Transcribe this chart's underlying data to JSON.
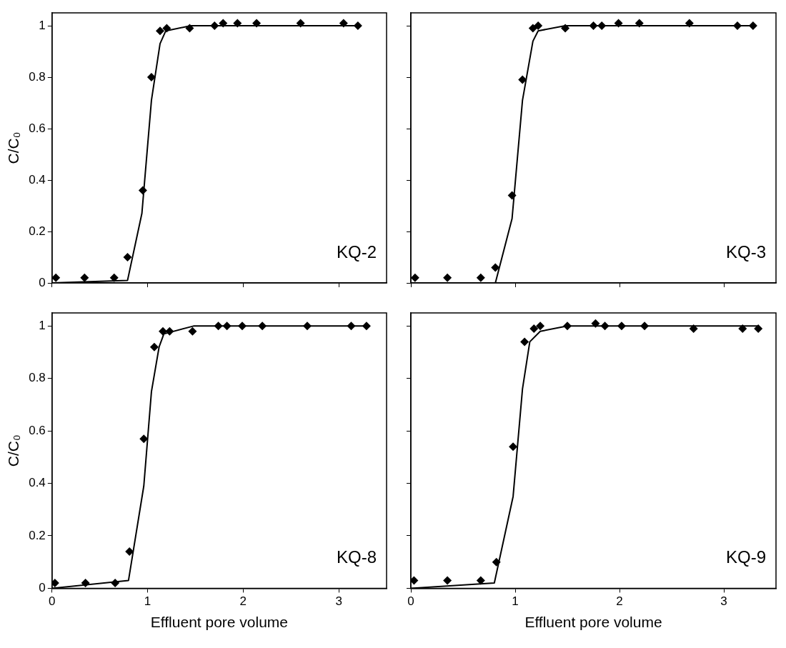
{
  "chart_data": [
    {
      "type": "scatter",
      "ylabel": "C/C₀",
      "xlim": [
        0,
        3.5
      ],
      "xticks": [
        0,
        1,
        2,
        3
      ],
      "ylim": [
        0,
        1.05
      ],
      "yticks": [
        0,
        0.2,
        0.4,
        0.6,
        0.8,
        1
      ],
      "tick_labels": "y",
      "grid": false,
      "legend": false,
      "marker": "diamond",
      "annotations": [
        "KQ-2"
      ],
      "series": [
        {
          "type": "scatter",
          "color": "#000000",
          "x": [
            0.04,
            0.34,
            0.65,
            0.79,
            0.95,
            1.04,
            1.13,
            1.2,
            1.44,
            1.7,
            1.79,
            1.94,
            2.14,
            2.6,
            3.05,
            3.2
          ],
          "values": [
            0.02,
            0.02,
            0.02,
            0.1,
            0.36,
            0.8,
            0.98,
            0.99,
            0.99,
            1.0,
            1.01,
            1.01,
            1.01,
            1.01,
            1.01,
            1.0
          ]
        },
        {
          "type": "line",
          "color": "#000000",
          "marker": "none",
          "line_style": "solid",
          "x": [
            0,
            0.79,
            0.94,
            1.04,
            1.13,
            1.19,
            1.45,
            3.2
          ],
          "values": [
            0,
            0.01,
            0.27,
            0.71,
            0.93,
            0.98,
            1.0,
            1.0
          ]
        }
      ]
    },
    {
      "type": "scatter",
      "xlim": [
        0,
        3.5
      ],
      "xticks": [
        0,
        1,
        2,
        3
      ],
      "ylim": [
        0,
        1.05
      ],
      "yticks": [
        0,
        0.2,
        0.4,
        0.6,
        0.8,
        1
      ],
      "tick_labels": false,
      "grid": false,
      "legend": false,
      "marker": "diamond",
      "annotations": [
        "KQ-3"
      ],
      "series": [
        {
          "type": "scatter",
          "color": "#000000",
          "x": [
            0.04,
            0.35,
            0.67,
            0.81,
            0.97,
            1.07,
            1.17,
            1.22,
            1.48,
            1.75,
            1.83,
            1.99,
            2.19,
            2.67,
            3.13,
            3.28
          ],
          "values": [
            0.02,
            0.02,
            0.02,
            0.06,
            0.34,
            0.79,
            0.99,
            1.0,
            0.99,
            1.0,
            1.0,
            1.01,
            1.01,
            1.01,
            1.0,
            1.0
          ]
        },
        {
          "type": "line",
          "color": "#000000",
          "marker": "none",
          "line_style": "solid",
          "x": [
            0,
            0.81,
            0.97,
            1.07,
            1.17,
            1.22,
            1.48,
            3.28
          ],
          "values": [
            0,
            0.0,
            0.25,
            0.71,
            0.94,
            0.98,
            1.0,
            1.0
          ]
        }
      ]
    },
    {
      "type": "scatter",
      "xlabel": "Effluent pore volume",
      "ylabel": "C/C₀",
      "xlim": [
        0,
        3.5
      ],
      "xticks": [
        0,
        1,
        2,
        3
      ],
      "ylim": [
        0,
        1.05
      ],
      "yticks": [
        0,
        0.2,
        0.4,
        0.6,
        0.8,
        1
      ],
      "grid": false,
      "legend": false,
      "marker": "diamond",
      "annotations": [
        "KQ-8"
      ],
      "series": [
        {
          "type": "scatter",
          "color": "#000000",
          "x": [
            0.03,
            0.35,
            0.66,
            0.81,
            0.96,
            1.07,
            1.16,
            1.23,
            1.47,
            1.74,
            1.83,
            1.99,
            2.2,
            2.67,
            3.13,
            3.29
          ],
          "values": [
            0.02,
            0.02,
            0.02,
            0.14,
            0.57,
            0.92,
            0.98,
            0.98,
            0.98,
            1.0,
            1.0,
            1.0,
            1.0,
            1.0,
            1.0,
            1.0
          ]
        },
        {
          "type": "line",
          "color": "#000000",
          "marker": "none",
          "line_style": "solid",
          "x": [
            0,
            0.8,
            0.96,
            1.04,
            1.12,
            1.17,
            1.48,
            3.29
          ],
          "values": [
            0,
            0.03,
            0.39,
            0.75,
            0.92,
            0.97,
            1.0,
            1.0
          ]
        }
      ]
    },
    {
      "type": "scatter",
      "xlabel": "Effluent pore volume",
      "xlim": [
        0,
        3.5
      ],
      "xticks": [
        0,
        1,
        2,
        3
      ],
      "ylim": [
        0,
        1.05
      ],
      "yticks": [
        0,
        0.2,
        0.4,
        0.6,
        0.8,
        1
      ],
      "tick_labels": "x",
      "grid": false,
      "legend": false,
      "marker": "diamond",
      "annotations": [
        "KQ-9"
      ],
      "series": [
        {
          "type": "scatter",
          "color": "#000000",
          "x": [
            0.03,
            0.35,
            0.67,
            0.82,
            0.98,
            1.09,
            1.18,
            1.24,
            1.5,
            1.77,
            1.86,
            2.02,
            2.24,
            2.71,
            3.18,
            3.33
          ],
          "values": [
            0.03,
            0.03,
            0.03,
            0.1,
            0.54,
            0.94,
            0.99,
            1.0,
            1.0,
            1.01,
            1.0,
            1.0,
            1.0,
            0.99,
            0.99,
            0.99
          ]
        },
        {
          "type": "line",
          "color": "#000000",
          "marker": "none",
          "line_style": "solid",
          "x": [
            0,
            0.8,
            0.98,
            1.07,
            1.14,
            1.24,
            1.5,
            3.33
          ],
          "values": [
            0,
            0.02,
            0.35,
            0.76,
            0.94,
            0.98,
            1.0,
            1.0
          ]
        }
      ]
    }
  ]
}
